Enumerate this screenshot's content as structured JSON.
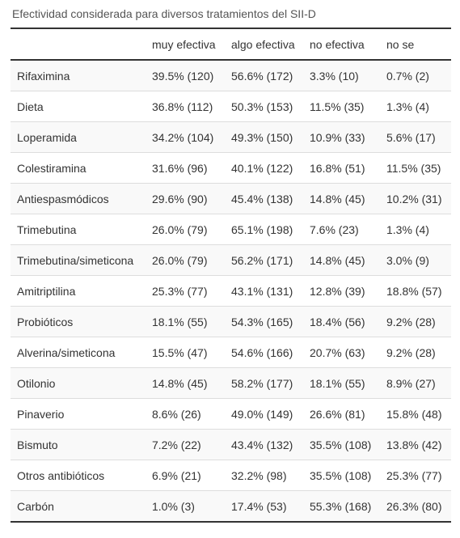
{
  "caption": "Efectividad considerada para diversos tratamientos del SII-D",
  "columns": [
    "",
    "muy efectiva",
    "algo efectiva",
    "no efectiva",
    "no se"
  ],
  "rows": [
    [
      "Rifaximina",
      "39.5% (120)",
      "56.6% (172)",
      "3.3% (10)",
      "0.7% (2)"
    ],
    [
      "Dieta",
      "36.8% (112)",
      "50.3% (153)",
      "11.5% (35)",
      "1.3% (4)"
    ],
    [
      "Loperamida",
      "34.2% (104)",
      "49.3% (150)",
      "10.9% (33)",
      "5.6% (17)"
    ],
    [
      "Colestiramina",
      "31.6% (96)",
      "40.1% (122)",
      "16.8% (51)",
      "11.5% (35)"
    ],
    [
      "Antiespasmódicos",
      "29.6% (90)",
      "45.4% (138)",
      "14.8% (45)",
      "10.2% (31)"
    ],
    [
      "Trimebutina",
      "26.0% (79)",
      "65.1% (198)",
      "7.6% (23)",
      "1.3% (4)"
    ],
    [
      "Trimebutina/simeticona",
      "26.0% (79)",
      "56.2% (171)",
      "14.8% (45)",
      "3.0% (9)"
    ],
    [
      "Amitriptilina",
      "25.3% (77)",
      "43.1% (131)",
      "12.8% (39)",
      "18.8% (57)"
    ],
    [
      "Probióticos",
      "18.1% (55)",
      "54.3% (165)",
      "18.4% (56)",
      "9.2% (28)"
    ],
    [
      "Alverina/simeticona",
      "15.5% (47)",
      "54.6% (166)",
      "20.7% (63)",
      "9.2% (28)"
    ],
    [
      "Otilonio",
      "14.8% (45)",
      "58.2% (177)",
      "18.1% (55)",
      "8.9% (27)"
    ],
    [
      "Pinaverio",
      "8.6% (26)",
      "49.0% (149)",
      "26.6% (81)",
      "15.8% (48)"
    ],
    [
      "Bismuto",
      "7.2% (22)",
      "43.4% (132)",
      "35.5% (108)",
      "13.8% (42)"
    ],
    [
      "Otros antibióticos",
      "6.9% (21)",
      "32.2% (98)",
      "35.5% (108)",
      "25.3% (77)"
    ],
    [
      "Carbón",
      "1.0% (3)",
      "17.4% (53)",
      "55.3% (168)",
      "26.3% (80)"
    ]
  ]
}
